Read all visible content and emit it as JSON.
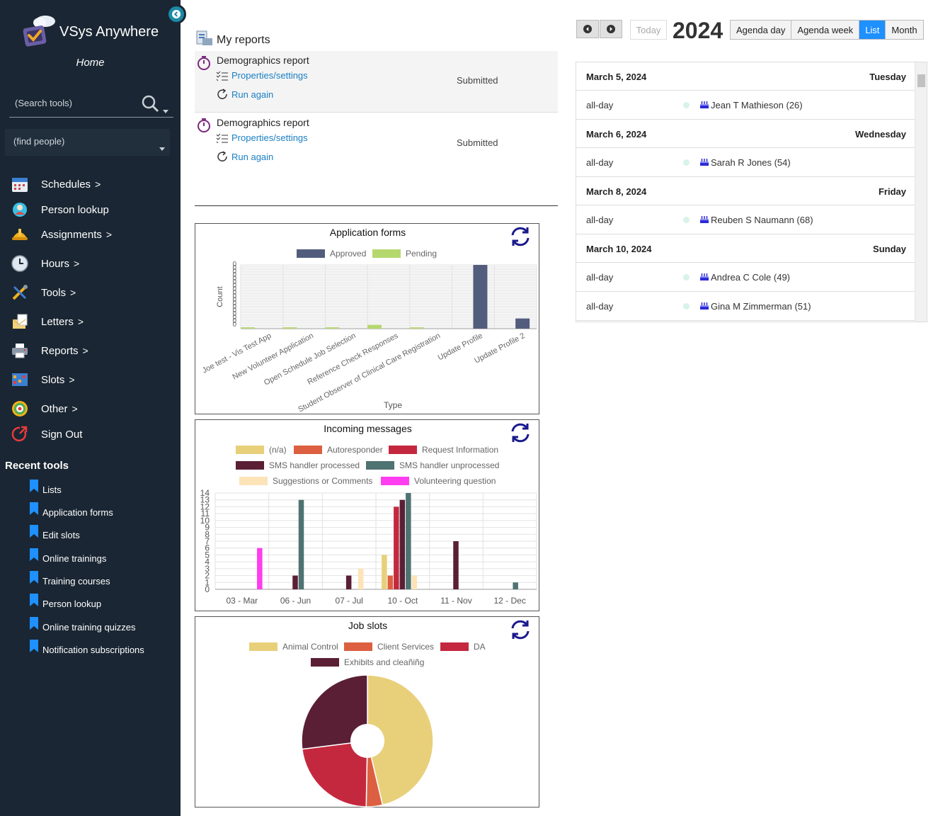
{
  "app": {
    "title": "VSys Anywhere",
    "home": "Home"
  },
  "search": {
    "tools_placeholder": "(Search tools)",
    "people_placeholder": "(find people)"
  },
  "nav": [
    {
      "label": "Schedules",
      "chevron": ">"
    },
    {
      "label": "Person lookup",
      "chevron": ""
    },
    {
      "label": "Assignments",
      "chevron": ">"
    },
    {
      "label": "Hours",
      "chevron": ">"
    },
    {
      "label": "Tools",
      "chevron": ">"
    },
    {
      "label": "Letters",
      "chevron": ">"
    },
    {
      "label": "Reports",
      "chevron": ">"
    },
    {
      "label": "Slots",
      "chevron": ">"
    },
    {
      "label": "Other",
      "chevron": ">"
    },
    {
      "label": "Sign Out",
      "chevron": ""
    }
  ],
  "recent": {
    "title": "Recent tools",
    "items": [
      "Lists",
      "Application forms",
      "Edit slots",
      "Online trainings",
      "Training courses",
      "Person lookup",
      "Online training quizzes",
      "Notification subscriptions"
    ]
  },
  "reports": {
    "title": "My reports",
    "items": [
      {
        "title": "Demographics report",
        "settings": "Properties/settings",
        "run": "Run again",
        "status": "Submitted"
      },
      {
        "title": "Demographics report",
        "settings": "Properties/settings",
        "run": "Run again",
        "status": "Submitted"
      }
    ]
  },
  "calendar": {
    "today": "Today",
    "year": "2024",
    "views": [
      "Agenda day",
      "Agenda week",
      "List",
      "Month"
    ],
    "active_view": "List",
    "days": [
      {
        "date": "March 5, 2024",
        "weekday": "Tuesday",
        "events": [
          {
            "time": "all-day",
            "name": "Jean T Mathieson (26)"
          }
        ]
      },
      {
        "date": "March 6, 2024",
        "weekday": "Wednesday",
        "events": [
          {
            "time": "all-day",
            "name": "Sarah R Jones (54)"
          }
        ]
      },
      {
        "date": "March 8, 2024",
        "weekday": "Friday",
        "events": [
          {
            "time": "all-day",
            "name": "Reuben S Naumann (68)"
          }
        ]
      },
      {
        "date": "March 10, 2024",
        "weekday": "Sunday",
        "events": [
          {
            "time": "all-day",
            "name": "Andrea C Cole (49)"
          },
          {
            "time": "all-day",
            "name": "Gina M Zimmerman (51)"
          }
        ]
      }
    ]
  },
  "chart_data": [
    {
      "type": "bar",
      "title": "Application forms",
      "xlabel": "Type",
      "ylabel": "Count",
      "categories": [
        "Joe test - Vis Test App",
        "New Volunteer Application",
        "Open Schedule Job Selection",
        "Reference Check Responses",
        "Student Observer of Clinical Care Registration",
        "Update Profile",
        "Update Profile 2"
      ],
      "series": [
        {
          "name": "Approved",
          "color": "#525d7d",
          "values": [
            0,
            0,
            0,
            0,
            0,
            1,
            0.16
          ]
        },
        {
          "name": "Pending",
          "color": "#b5d86e",
          "values": [
            0.02,
            0.02,
            0.02,
            0.06,
            0.02,
            0,
            0
          ]
        }
      ],
      "legend": "top",
      "grid": true
    },
    {
      "type": "bar",
      "title": "Incoming messages",
      "categories": [
        "03 - Mar",
        "06 - Jun",
        "07 - Jul",
        "10 - Oct",
        "11 - Nov",
        "12 - Dec"
      ],
      "ylim": [
        0,
        14
      ],
      "yticks": [
        "0",
        "1",
        "2",
        "3",
        "4",
        "5",
        "6",
        "7",
        "8",
        "9",
        "10",
        "11",
        "12",
        "13",
        "14"
      ],
      "series": [
        {
          "name": "(n/a)",
          "color": "#e8d07b",
          "values": [
            0,
            0,
            0,
            5,
            0,
            0
          ]
        },
        {
          "name": "Autoresponder",
          "color": "#dc5f41",
          "values": [
            0,
            0,
            0,
            2,
            0,
            0
          ]
        },
        {
          "name": "Request Information",
          "color": "#c4283f",
          "values": [
            0,
            0,
            0,
            12,
            0,
            0
          ]
        },
        {
          "name": "SMS handler processed",
          "color": "#5a1f35",
          "values": [
            0,
            2,
            2,
            13,
            7,
            0
          ]
        },
        {
          "name": "SMS handler unprocessed",
          "color": "#4e7370",
          "values": [
            0,
            13,
            0,
            14,
            0,
            1
          ]
        },
        {
          "name": "Suggestions or Comments",
          "color": "#fde3b8",
          "values": [
            0,
            0,
            3,
            2,
            0,
            0
          ]
        },
        {
          "name": "Volunteering question",
          "color": "#ff3df0",
          "values": [
            6,
            0,
            0,
            0,
            0,
            0
          ]
        }
      ],
      "legend": "top",
      "grid": true
    },
    {
      "type": "pie",
      "title": "Job slots",
      "categories": [
        "Animal Control",
        "Client Services",
        "DA",
        "Exhibits and cleaning"
      ],
      "legend_labels": [
        "Animal Control",
        "Client Services",
        "DA",
        "Exhibits and cleañiñg"
      ],
      "colors": [
        "#e8d07b",
        "#dc5f41",
        "#c4283f",
        "#5a1f35"
      ],
      "values": [
        0.463,
        0.04,
        0.227,
        0.27
      ],
      "legend": "top"
    }
  ]
}
